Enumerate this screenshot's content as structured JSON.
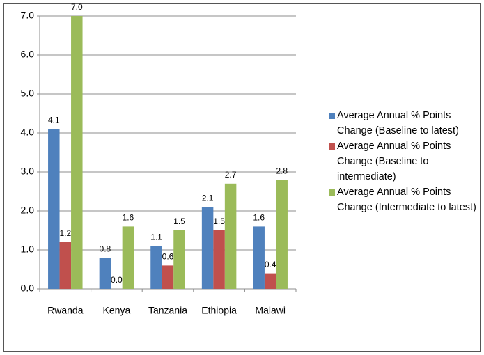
{
  "chart_data": {
    "type": "bar",
    "categories": [
      "Rwanda",
      "Kenya",
      "Tanzania",
      "Ethiopia",
      "Malawi"
    ],
    "series": [
      {
        "name": "Average Annual % Points Change (Baseline to latest)",
        "color": "#4f81bd",
        "values": [
          4.1,
          0.8,
          1.1,
          2.1,
          1.6
        ],
        "value_labels": [
          "4.1",
          "0.8",
          "1.1",
          "2.1",
          "1.6"
        ]
      },
      {
        "name": "Average Annual % Points Change (Baseline to intermediate)",
        "color": "#c0504d",
        "values": [
          1.2,
          0.0,
          0.6,
          1.5,
          0.4
        ],
        "value_labels": [
          "1.2",
          "0.0",
          "0.6",
          "1.5",
          "0.4"
        ]
      },
      {
        "name": "Average Annual % Points Change (Intermediate to latest)",
        "color": "#9bbb59",
        "values": [
          7.0,
          1.6,
          1.5,
          2.7,
          2.8
        ],
        "value_labels": [
          "7.0",
          "1.6",
          "1.5",
          "2.7",
          "2.8"
        ]
      }
    ],
    "ylim": [
      0,
      7
    ],
    "yticks": [
      {
        "value": 0,
        "label": "0.0"
      },
      {
        "value": 1,
        "label": "1.0"
      },
      {
        "value": 2,
        "label": "2.0"
      },
      {
        "value": 3,
        "label": "3.0"
      },
      {
        "value": 4,
        "label": "4.0"
      },
      {
        "value": 5,
        "label": "5.0"
      },
      {
        "value": 6,
        "label": "6.0"
      },
      {
        "value": 7,
        "label": "7.0"
      }
    ],
    "grid": true,
    "legend": "right"
  }
}
